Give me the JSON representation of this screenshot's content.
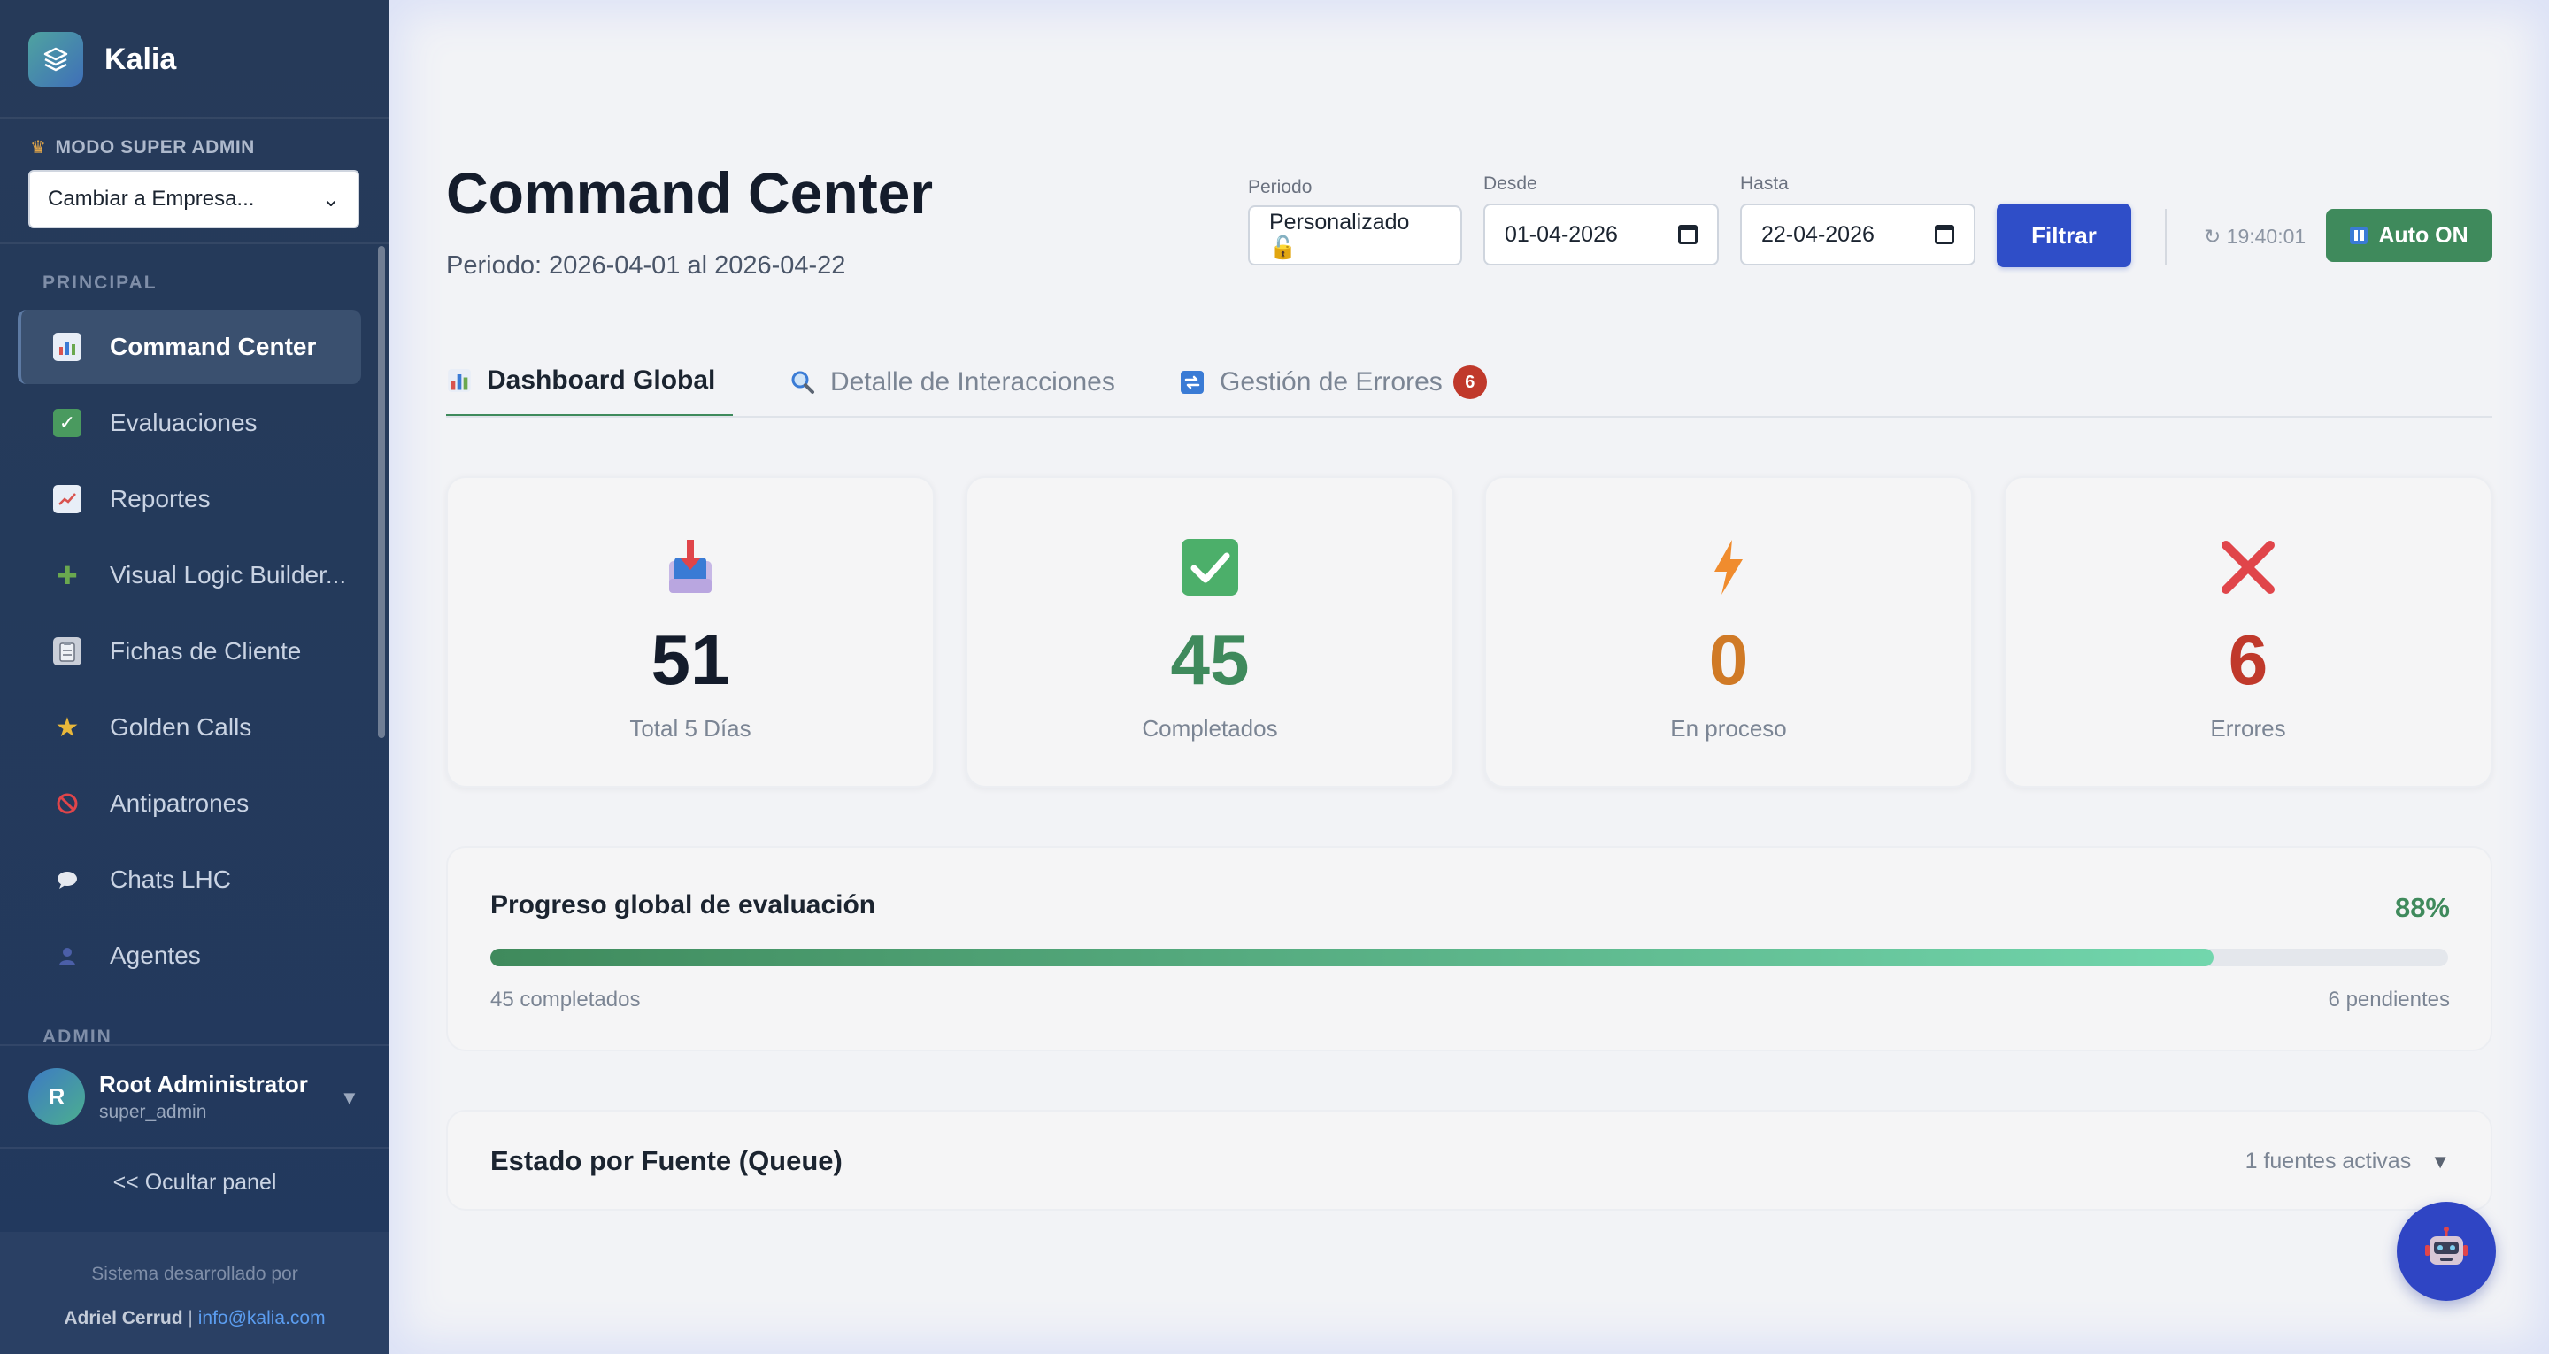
{
  "sidebar": {
    "brand": "Kalia",
    "mode_label": "MODO SUPER ADMIN",
    "company_select": "Cambiar a Empresa...",
    "section_principal": "PRINCIPAL",
    "section_admin": "ADMIN",
    "items": [
      {
        "label": "Command Center",
        "icon": "bar-chart-icon",
        "active": true
      },
      {
        "label": "Evaluaciones",
        "icon": "checkmark-icon"
      },
      {
        "label": "Reportes",
        "icon": "trend-chart-icon"
      },
      {
        "label": "Visual Logic Builder...",
        "icon": "puzzle-icon"
      },
      {
        "label": "Fichas de Cliente",
        "icon": "clipboard-icon"
      },
      {
        "label": "Golden Calls",
        "icon": "star-icon"
      },
      {
        "label": "Antipatrones",
        "icon": "prohibited-icon"
      },
      {
        "label": "Chats LHC",
        "icon": "speech-bubble-icon"
      },
      {
        "label": "Agentes",
        "icon": "person-icon"
      }
    ],
    "user": {
      "initial": "R",
      "name": "Root Administrator",
      "role": "super_admin"
    },
    "hide_panel": "<< Ocultar panel",
    "footer_line1": "Sistema desarrollado por",
    "footer_author": "Adriel Cerrud",
    "footer_sep": " | ",
    "footer_email": "info@kalia.com"
  },
  "header": {
    "title": "Command Center",
    "subtitle": "Periodo: 2026-04-01 al 2026-04-22",
    "periodo_label": "Periodo",
    "periodo_value": "Personalizado 🔓",
    "desde_label": "Desde",
    "desde_value": "01-04-2026",
    "hasta_label": "Hasta",
    "hasta_value": "22-04-2026",
    "filter_button": "Filtrar",
    "refresh_time": "↻ 19:40:01",
    "auto_button": "Auto ON"
  },
  "tabs": [
    {
      "label": "Dashboard Global",
      "icon": "bar-chart-icon",
      "active": true
    },
    {
      "label": "Detalle de Interacciones",
      "icon": "magnifier-icon"
    },
    {
      "label": "Gestión de Errores",
      "icon": "repeat-icon",
      "badge": "6"
    }
  ],
  "stats": [
    {
      "value": "51",
      "label": "Total 5 Días",
      "icon": "inbox-tray-icon",
      "color": "#141c2b"
    },
    {
      "value": "45",
      "label": "Completados",
      "icon": "check-box-icon",
      "color": "#3f8a5c"
    },
    {
      "value": "0",
      "label": "En proceso",
      "icon": "lightning-icon",
      "color": "#d07a26"
    },
    {
      "value": "6",
      "label": "Errores",
      "icon": "cross-icon",
      "color": "#c0392b"
    }
  ],
  "progress": {
    "title": "Progreso global de evaluación",
    "percent_label": "88%",
    "percent": 0.88,
    "completed_label": "45 completados",
    "pending_label": "6 pendientes"
  },
  "queue": {
    "title": "Estado por Fuente (Queue)",
    "active_sources": "1 fuentes activas"
  },
  "colors": {
    "accent_green": "#3f8a5c",
    "accent_blue": "#2f4ec8",
    "error_red": "#c0392b",
    "sidebar_bg": "#263a59"
  }
}
